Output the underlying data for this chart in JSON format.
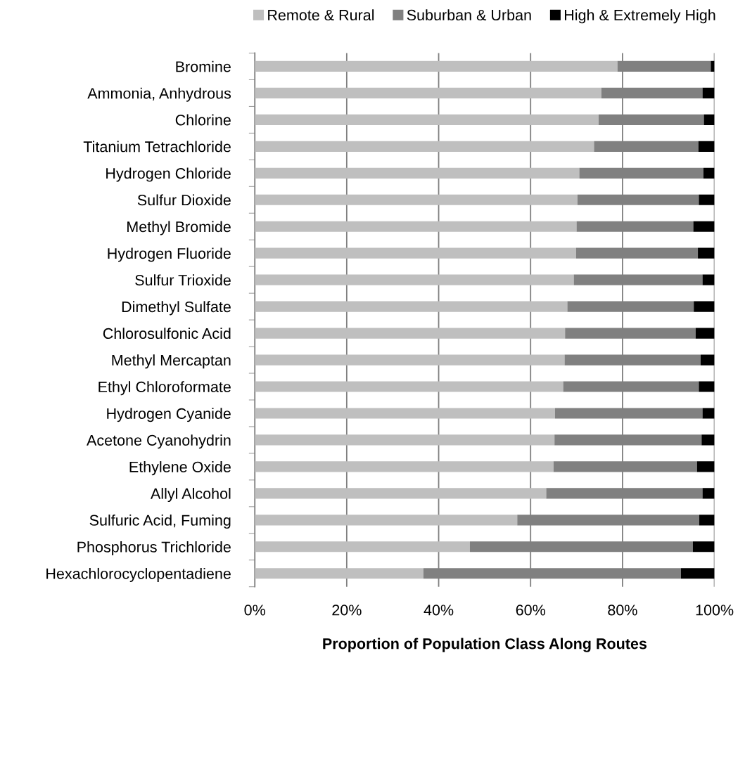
{
  "chart_data": {
    "type": "bar",
    "orientation": "horizontal",
    "stacked": true,
    "xlabel": "Proportion of Population Class Along Routes",
    "categories": [
      "Bromine",
      "Ammonia, Anhydrous",
      "Chlorine",
      "Titanium Tetrachloride",
      "Hydrogen Chloride",
      "Sulfur Dioxide",
      "Methyl Bromide",
      "Hydrogen Fluoride",
      "Sulfur Trioxide",
      "Dimethyl Sulfate",
      "Chlorosulfonic Acid",
      "Methyl Mercaptan",
      "Ethyl Chloroformate",
      "Hydrogen Cyanide",
      "Acetone Cyanohydrin",
      "Ethylene Oxide",
      "Allyl Alcohol",
      "Sulfuric Acid, Fuming",
      "Phosphorus Trichloride",
      "Hexachlorocyclopentadiene"
    ],
    "series": [
      {
        "name": "Remote & Rural",
        "color": "#bfbfbf",
        "values": [
          78.9,
          75.4,
          74.8,
          73.8,
          70.6,
          70.2,
          70.0,
          69.9,
          69.4,
          68.0,
          67.5,
          67.4,
          67.1,
          65.3,
          65.2,
          65.0,
          63.4,
          57.1,
          46.8,
          36.7
        ]
      },
      {
        "name": "Suburban & Urban",
        "color": "#808080",
        "values": [
          20.3,
          22.0,
          22.9,
          22.7,
          27.0,
          26.4,
          25.4,
          26.5,
          28.0,
          27.5,
          28.4,
          29.6,
          29.5,
          32.1,
          32.0,
          31.2,
          34.0,
          39.6,
          48.5,
          56.0
        ]
      },
      {
        "name": "High & Extremely High",
        "color": "#000000",
        "values": [
          0.8,
          2.6,
          2.3,
          3.5,
          2.4,
          3.4,
          4.6,
          3.6,
          2.6,
          4.5,
          4.1,
          3.0,
          3.4,
          2.6,
          2.8,
          3.8,
          2.6,
          3.3,
          4.7,
          7.3
        ]
      }
    ],
    "xlim": [
      0,
      100
    ],
    "xticks": [
      {
        "value": 0,
        "label": "0%"
      },
      {
        "value": 20,
        "label": "20%"
      },
      {
        "value": 40,
        "label": "40%"
      },
      {
        "value": 60,
        "label": "60%"
      },
      {
        "value": 80,
        "label": "80%"
      },
      {
        "value": 100,
        "label": "100%"
      }
    ],
    "grid": "x",
    "legend": "top"
  }
}
